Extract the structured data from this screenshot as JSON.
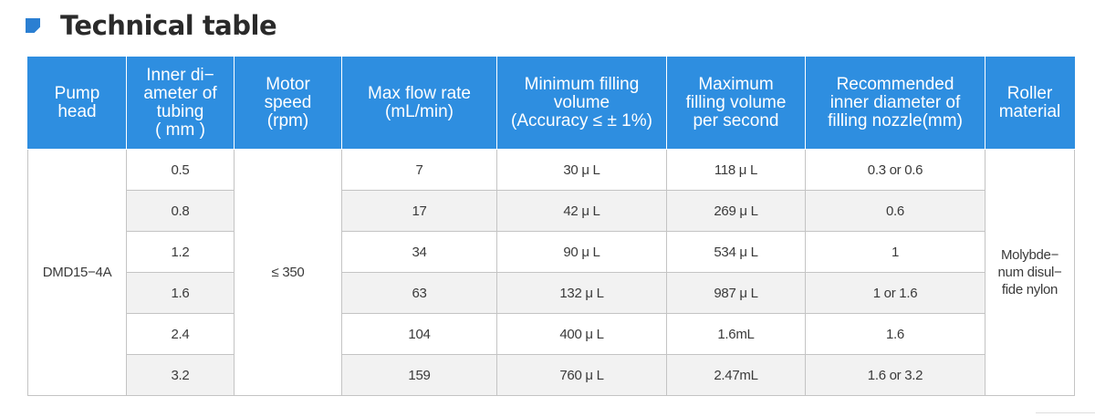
{
  "title": "Technical table",
  "headers": [
    "Pump\nhead",
    "Inner di−\nameter of\ntubing\n( mm )",
    "Motor\nspeed\n(rpm)",
    "Max flow rate\n(mL/min)",
    "Minimum filling\nvolume\n(Accuracy ≤ ± 1%)",
    "Maximum\nfilling volume\nper second",
    "Recommended\ninner diameter of\nfilling nozzle(mm)",
    "Roller\nmaterial"
  ],
  "pump_head": "DMD15−4A",
  "motor_speed": "≤ 350",
  "roller_material": "Molybde−\nnum disul−\nfide nylon",
  "rows": [
    {
      "tubing": "0.5",
      "flow": "7",
      "min_vol": "30 μ L",
      "max_vol": "118 μ L",
      "nozzle": "0.3 or 0.6"
    },
    {
      "tubing": "0.8",
      "flow": "17",
      "min_vol": "42 μ L",
      "max_vol": "269 μ L",
      "nozzle": "0.6"
    },
    {
      "tubing": "1.2",
      "flow": "34",
      "min_vol": "90 μ L",
      "max_vol": "534 μ L",
      "nozzle": "1"
    },
    {
      "tubing": "1.6",
      "flow": "63",
      "min_vol": "132 μ L",
      "max_vol": "987 μ L",
      "nozzle": "1 or 1.6"
    },
    {
      "tubing": "2.4",
      "flow": "104",
      "min_vol": "400 μ L",
      "max_vol": "1.6mL",
      "nozzle": "1.6"
    },
    {
      "tubing": "3.2",
      "flow": "159",
      "min_vol": "760 μ L",
      "max_vol": "2.47mL",
      "nozzle": "1.6 or 3.2"
    }
  ],
  "colors": {
    "header_bg": "#2e8ee0",
    "icon": "#2b7fd2",
    "stripe": "#f2f2f2"
  }
}
